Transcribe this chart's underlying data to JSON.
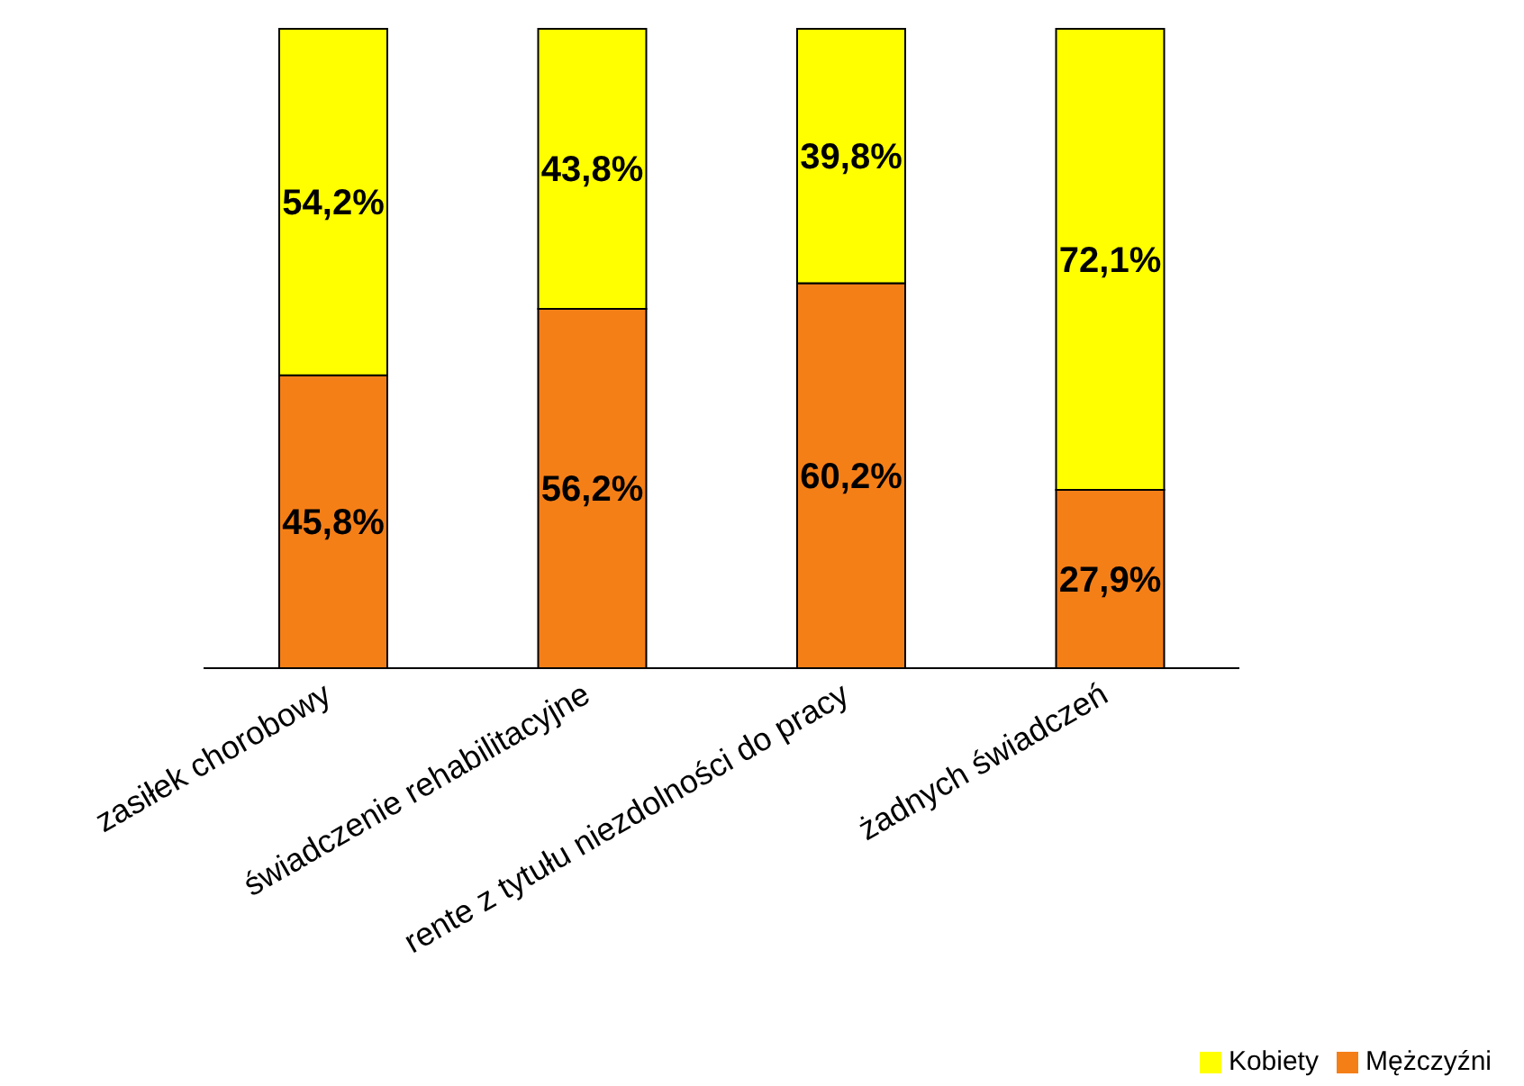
{
  "chart_data": {
    "type": "bar",
    "stacked": true,
    "categories": [
      "zasiłek chorobowy",
      "świadczenie rehabilitacyjne",
      "rente z tytułu niezdolności do pracy",
      "żadnych świadczeń"
    ],
    "series": [
      {
        "name": "Mężczyźni",
        "color": "#f57f17",
        "values": [
          45.8,
          56.2,
          60.2,
          27.9
        ],
        "value_labels": [
          "45,8%",
          "56,2%",
          "60,2%",
          "27,9%"
        ]
      },
      {
        "name": "Kobiety",
        "color": "#ffff00",
        "values": [
          54.2,
          43.8,
          39.8,
          72.1
        ],
        "value_labels": [
          "54,2%",
          "43,8%",
          "39,8%",
          "72,1%"
        ]
      }
    ],
    "legend": "bottom right",
    "grid": false
  }
}
